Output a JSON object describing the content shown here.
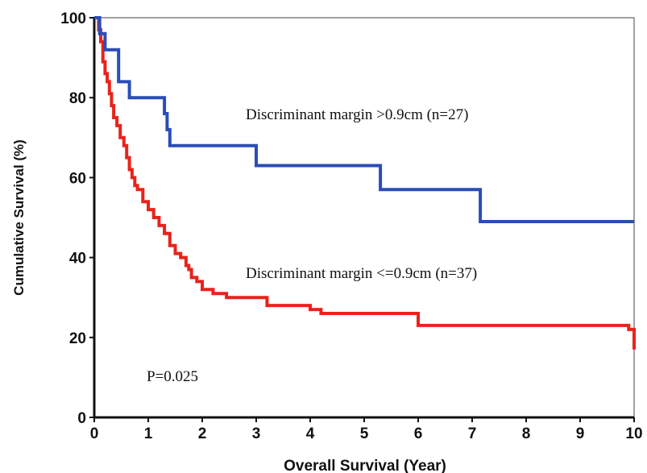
{
  "chart_data": {
    "type": "line",
    "step": true,
    "xlabel": "Overall Survival (Year)",
    "ylabel": "Cumulative Survival (%)",
    "xlim": [
      0,
      10
    ],
    "ylim": [
      0,
      100
    ],
    "xticks": [
      "0",
      "1",
      "2",
      "3",
      "4",
      "5",
      "6",
      "7",
      "8",
      "9",
      "10"
    ],
    "yticks": [
      "0",
      "20",
      "40",
      "60",
      "80",
      "100"
    ],
    "grid": false,
    "legend": "none",
    "annotations": {
      "group_high": "Discriminant margin >0.9cm (n=27)",
      "group_low": "Discriminant margin <=0.9cm (n=37)",
      "p_value": "P=0.025"
    },
    "series": [
      {
        "color": "#2a4db8",
        "x": [
          0,
          0.05,
          0.1,
          0.2,
          0.45,
          0.65,
          1.3,
          1.35,
          1.4,
          3.0,
          5.3,
          7.15,
          10
        ],
        "y": [
          100,
          100,
          96,
          92,
          84,
          80,
          76,
          72,
          68,
          63,
          57,
          49,
          49
        ]
      },
      {
        "color": "#e8231c",
        "x": [
          0,
          0.08,
          0.12,
          0.16,
          0.2,
          0.24,
          0.28,
          0.32,
          0.36,
          0.42,
          0.48,
          0.55,
          0.6,
          0.65,
          0.7,
          0.75,
          0.8,
          0.9,
          1.0,
          1.1,
          1.2,
          1.3,
          1.4,
          1.5,
          1.6,
          1.7,
          1.75,
          1.8,
          1.9,
          2.0,
          2.2,
          2.45,
          3.2,
          4.0,
          4.2,
          6.0,
          9.9,
          10
        ],
        "y": [
          100,
          97,
          94,
          89,
          86,
          84,
          81,
          78,
          75,
          73,
          70,
          68,
          65,
          62,
          60,
          58,
          57,
          54,
          52,
          50,
          48,
          46,
          43,
          41,
          40,
          38,
          37,
          35,
          34,
          32,
          31,
          30,
          28,
          27,
          26,
          23,
          22,
          17
        ]
      }
    ]
  }
}
